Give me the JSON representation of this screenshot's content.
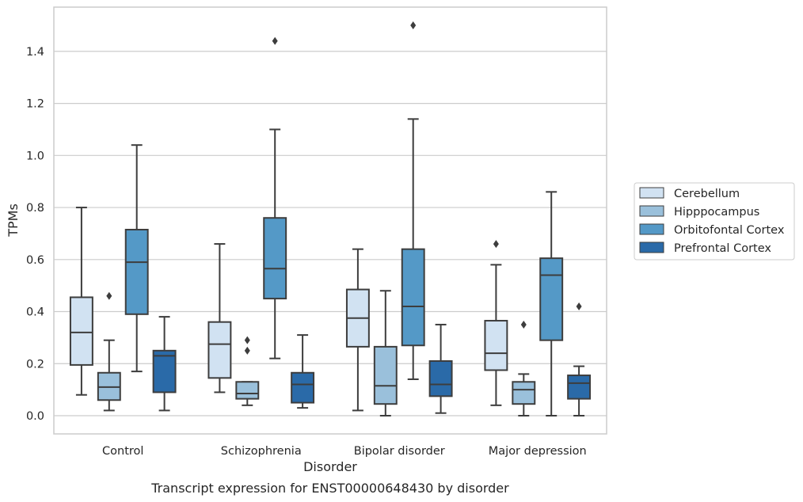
{
  "chart_data": {
    "type": "box",
    "xlabel": "Disorder",
    "ylabel": "TPMs",
    "caption": "Transcript expression for ENST00000648430 by disorder",
    "ylim": [
      -0.07,
      1.57
    ],
    "yticks": [
      0.0,
      0.2,
      0.4,
      0.6,
      0.8,
      1.0,
      1.2,
      1.4
    ],
    "ytick_labels": [
      "0.0",
      "0.2",
      "0.4",
      "0.6",
      "0.8",
      "1.0",
      "1.2",
      "1.4"
    ],
    "grid": "horizontal",
    "legend_position": "right",
    "categories": [
      "Control",
      "Schizophrenia",
      "Bipolar disorder",
      "Major depression"
    ],
    "series": [
      {
        "name": "Cerebellum",
        "color": "#d1e2f2",
        "boxes": [
          {
            "whislo": 0.08,
            "q1": 0.195,
            "med": 0.32,
            "q3": 0.455,
            "whishi": 0.8,
            "fliers": []
          },
          {
            "whislo": 0.09,
            "q1": 0.145,
            "med": 0.275,
            "q3": 0.36,
            "whishi": 0.66,
            "fliers": []
          },
          {
            "whislo": 0.02,
            "q1": 0.265,
            "med": 0.375,
            "q3": 0.485,
            "whishi": 0.64,
            "fliers": []
          },
          {
            "whislo": 0.04,
            "q1": 0.175,
            "med": 0.24,
            "q3": 0.365,
            "whishi": 0.58,
            "fliers": [
              0.66
            ]
          }
        ]
      },
      {
        "name": "Hipppocampus",
        "color": "#9ac0db",
        "boxes": [
          {
            "whislo": 0.02,
            "q1": 0.06,
            "med": 0.11,
            "q3": 0.165,
            "whishi": 0.29,
            "fliers": [
              0.46
            ]
          },
          {
            "whislo": 0.04,
            "q1": 0.065,
            "med": 0.085,
            "q3": 0.13,
            "whishi": 0.13,
            "fliers": [
              0.25,
              0.29
            ]
          },
          {
            "whislo": 0.0,
            "q1": 0.045,
            "med": 0.115,
            "q3": 0.265,
            "whishi": 0.48,
            "fliers": []
          },
          {
            "whislo": 0.0,
            "q1": 0.045,
            "med": 0.1,
            "q3": 0.13,
            "whishi": 0.16,
            "fliers": [
              0.35
            ]
          }
        ]
      },
      {
        "name": "Orbitofontal Cortex",
        "color": "#5499c7",
        "boxes": [
          {
            "whislo": 0.17,
            "q1": 0.39,
            "med": 0.59,
            "q3": 0.715,
            "whishi": 1.04,
            "fliers": []
          },
          {
            "whislo": 0.22,
            "q1": 0.45,
            "med": 0.565,
            "q3": 0.76,
            "whishi": 1.1,
            "fliers": [
              1.44
            ]
          },
          {
            "whislo": 0.14,
            "q1": 0.27,
            "med": 0.42,
            "q3": 0.64,
            "whishi": 1.14,
            "fliers": [
              1.5
            ]
          },
          {
            "whislo": 0.0,
            "q1": 0.29,
            "med": 0.54,
            "q3": 0.605,
            "whishi": 0.86,
            "fliers": []
          }
        ]
      },
      {
        "name": "Prefrontal Cortex",
        "color": "#2a6aa8",
        "boxes": [
          {
            "whislo": 0.02,
            "q1": 0.09,
            "med": 0.23,
            "q3": 0.25,
            "whishi": 0.38,
            "fliers": []
          },
          {
            "whislo": 0.03,
            "q1": 0.05,
            "med": 0.12,
            "q3": 0.165,
            "whishi": 0.31,
            "fliers": []
          },
          {
            "whislo": 0.01,
            "q1": 0.075,
            "med": 0.12,
            "q3": 0.21,
            "whishi": 0.35,
            "fliers": []
          },
          {
            "whislo": 0.0,
            "q1": 0.065,
            "med": 0.125,
            "q3": 0.155,
            "whishi": 0.19,
            "fliers": [
              0.42
            ]
          }
        ]
      }
    ],
    "style": {
      "grid_color": "#cccccc",
      "axes_edge_color": "#cccccc",
      "line_color": "#3d3d3d",
      "background": "#ffffff"
    }
  }
}
